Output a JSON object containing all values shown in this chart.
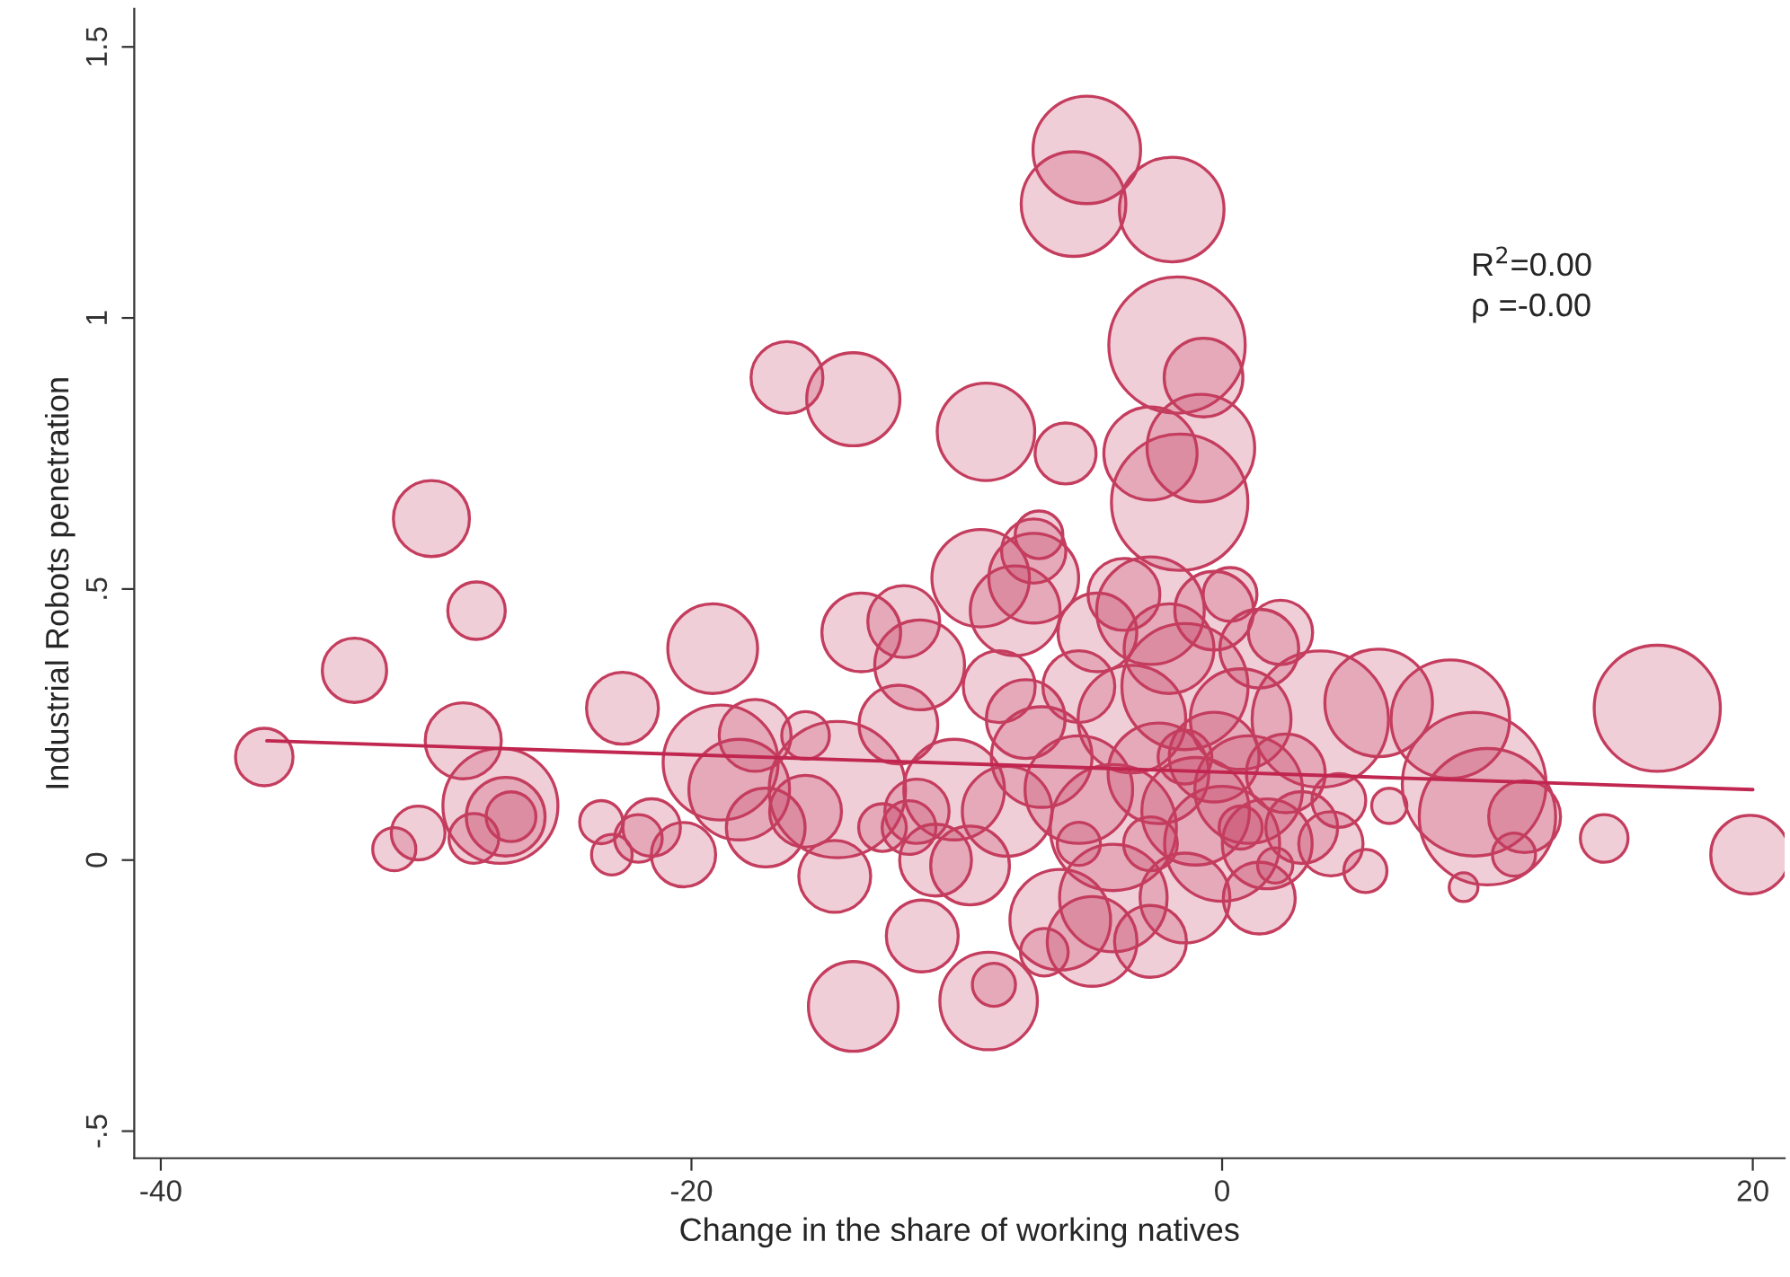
{
  "chart_data": {
    "type": "bubble",
    "xlabel": "Change in the share of working natives",
    "ylabel": "Industrial Robots penetration",
    "xlim": [
      -41,
      21.2
    ],
    "ylim": [
      -0.55,
      1.57
    ],
    "xticks": [
      -40,
      -20,
      0,
      20
    ],
    "yticks": [
      {
        "value": -0.5,
        "label": "-.5"
      },
      0,
      {
        "value": 0.5,
        "label": ".5"
      },
      1,
      1.5
    ],
    "grid": false,
    "annotations": [
      "R$^{2}$=0.00",
      "ρ =-0.00"
    ],
    "series": [
      {
        "color": "#c43d5e",
        "x": [
          -36.1,
          -32.7,
          -29.8,
          -28.1,
          -28.6,
          -31.2,
          -30.3,
          -28.2,
          -27.2,
          -27.0,
          -26.8,
          -23.4,
          -23.0,
          -22.6,
          -22.0,
          -21.5,
          -20.3,
          -19.2,
          -18.9,
          -18.2,
          -17.6,
          -17.2,
          -16.4,
          -15.7,
          -15.7,
          -14.5,
          -13.9,
          -14.6,
          -13.9,
          -13.6,
          -12.2,
          -12.0,
          -11.4,
          -11.3,
          -11.8,
          -10.8,
          -10.1,
          -8.9,
          -9.1,
          -8.8,
          -8.6,
          -7.8,
          -7.1,
          -6.9,
          -7.1,
          -6.7,
          -5.9,
          -5.1,
          -5.6,
          -1.9,
          -1.7,
          -0.7,
          -0.8,
          -2.7,
          -1.6,
          -4.9,
          -2.7,
          -2.7,
          -4.7,
          1.4,
          2.2,
          3.7,
          5.9,
          5.4,
          6.3,
          8.6,
          9.5,
          10.0,
          9.1,
          11.4,
          11.0,
          14.4,
          16.4,
          19.9,
          -6.1,
          -8.1,
          -6.8,
          -5.4,
          -4.1,
          -3.4,
          -2.4,
          -1.4,
          -1.0,
          -0.3,
          0.0,
          0.7,
          1.0,
          1.7,
          2.4,
          3.0,
          4.1,
          4.4,
          -4.1,
          -1.4,
          1.4,
          -9.5,
          -11.5,
          -12.8,
          -2.0,
          -0.3,
          0.3,
          -5.4,
          -3.7,
          -7.4,
          -8.4,
          -2.7,
          -1.4,
          0.7,
          2.0,
          -5.4
        ],
        "values": [
          0.19,
          0.35,
          0.63,
          0.46,
          0.22,
          0.02,
          0.05,
          0.04,
          0.1,
          0.08,
          0.08,
          0.07,
          0.01,
          0.28,
          0.04,
          0.06,
          0.01,
          0.39,
          0.18,
          0.13,
          0.23,
          0.06,
          0.89,
          0.09,
          0.23,
          0.13,
          0.85,
          -0.03,
          -0.27,
          0.42,
          0.25,
          0.44,
          0.36,
          -0.14,
          0.06,
          0.0,
          0.13,
          0.79,
          0.52,
          -0.26,
          -0.23,
          0.46,
          0.57,
          0.6,
          0.52,
          -0.17,
          0.75,
          1.31,
          1.21,
          1.2,
          0.95,
          0.89,
          0.76,
          0.75,
          0.66,
          -0.15,
          -0.15,
          0.46,
          0.42,
          0.39,
          0.42,
          0.26,
          0.29,
          -0.02,
          0.1,
          0.26,
          0.14,
          0.08,
          -0.05,
          0.08,
          0.01,
          0.04,
          0.28,
          0.01,
          -0.11,
          0.09,
          0.19,
          0.13,
          0.06,
          0.26,
          0.16,
          0.32,
          0.09,
          0.19,
          0.03,
          0.26,
          0.13,
          0.03,
          0.16,
          0.06,
          0.03,
          0.11,
          -0.07,
          -0.07,
          -0.07,
          -0.01,
          0.09,
          0.06,
          0.39,
          0.46,
          0.49,
          0.32,
          0.49,
          0.26,
          0.32,
          0.03,
          0.19,
          0.06,
          -0.01,
          0.03
        ],
        "sizes": [
          0.16,
          0.2,
          0.28,
          0.16,
          0.28,
          0.09,
          0.14,
          0.12,
          0.64,
          0.3,
          0.12,
          0.09,
          0.08,
          0.25,
          0.11,
          0.16,
          0.2,
          0.39,
          0.64,
          0.49,
          0.25,
          0.3,
          0.25,
          0.25,
          0.11,
          0.9,
          0.42,
          0.25,
          0.39,
          0.3,
          0.3,
          0.25,
          0.39,
          0.25,
          0.14,
          0.25,
          0.49,
          0.46,
          0.46,
          0.46,
          0.09,
          0.39,
          0.2,
          0.11,
          0.39,
          0.11,
          0.18,
          0.56,
          0.53,
          0.53,
          0.9,
          0.3,
          0.56,
          0.42,
          0.9,
          0.39,
          0.25,
          0.56,
          0.3,
          0.3,
          0.2,
          0.9,
          0.56,
          0.09,
          0.06,
          0.68,
          1,
          0.9,
          0.04,
          0.25,
          0.09,
          0.11,
          0.77,
          0.3,
          0.49,
          0.39,
          0.49,
          0.56,
          0.77,
          0.56,
          0.49,
          0.77,
          0.56,
          0.39,
          0.64,
          0.49,
          0.56,
          0.39,
          0.3,
          0.25,
          0.2,
          0.14,
          0.56,
          0.39,
          0.25,
          0.3,
          0.2,
          0.11,
          0.39,
          0.3,
          0.14,
          0.25,
          0.25,
          0.3,
          0.25,
          0.14,
          0.14,
          0.09,
          0.06,
          0.09
        ]
      },
      {
        "type": "line",
        "color": "#c0264f",
        "x": [
          -36,
          20
        ],
        "values": [
          0.22,
          0.13
        ]
      }
    ]
  }
}
